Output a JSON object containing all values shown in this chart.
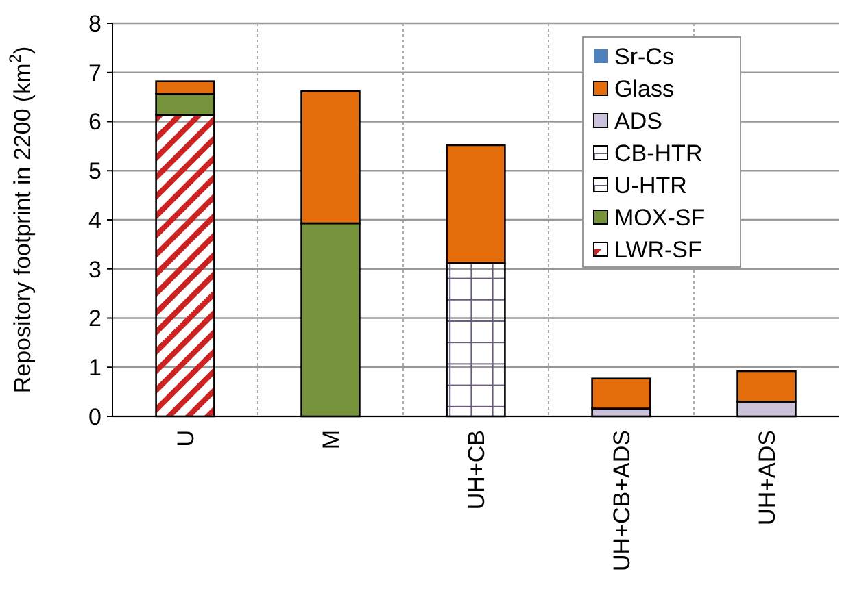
{
  "chart_data": {
    "type": "bar",
    "stacked": true,
    "ylabel": "Repository footprint in 2200 (km$^{2}$)",
    "categories": [
      "U",
      "M",
      "UH+CB",
      "UH+CB+ADS",
      "UH+ADS"
    ],
    "series": [
      {
        "name": "LWR-SF",
        "color": "#cc2222",
        "values": [
          6.13,
          0,
          0,
          0,
          0
        ]
      },
      {
        "name": "MOX-SF",
        "color": "#77933c",
        "values": [
          0.43,
          3.93,
          0,
          0,
          0
        ]
      },
      {
        "name": "U-HTR",
        "color": "#6b5b7b",
        "values": [
          0,
          0,
          3.12,
          0,
          0
        ]
      },
      {
        "name": "CB-HTR",
        "color": "#6b5b7b",
        "values": [
          0,
          0,
          0,
          0,
          0
        ]
      },
      {
        "name": "ADS",
        "color": "#ccc1da",
        "values": [
          0,
          0,
          0,
          0.16,
          0.3
        ]
      },
      {
        "name": "Glass",
        "color": "#e46c0a",
        "values": [
          0.26,
          2.69,
          2.4,
          0.61,
          0.62
        ]
      },
      {
        "name": "Sr-Cs",
        "color": "#4f81bd",
        "values": [
          0,
          0,
          0,
          0,
          0
        ]
      }
    ],
    "ylim": [
      0,
      8
    ],
    "yticks": [
      0,
      1,
      2,
      3,
      4,
      5,
      6,
      7,
      8
    ],
    "grid": true,
    "legend": "top right"
  }
}
